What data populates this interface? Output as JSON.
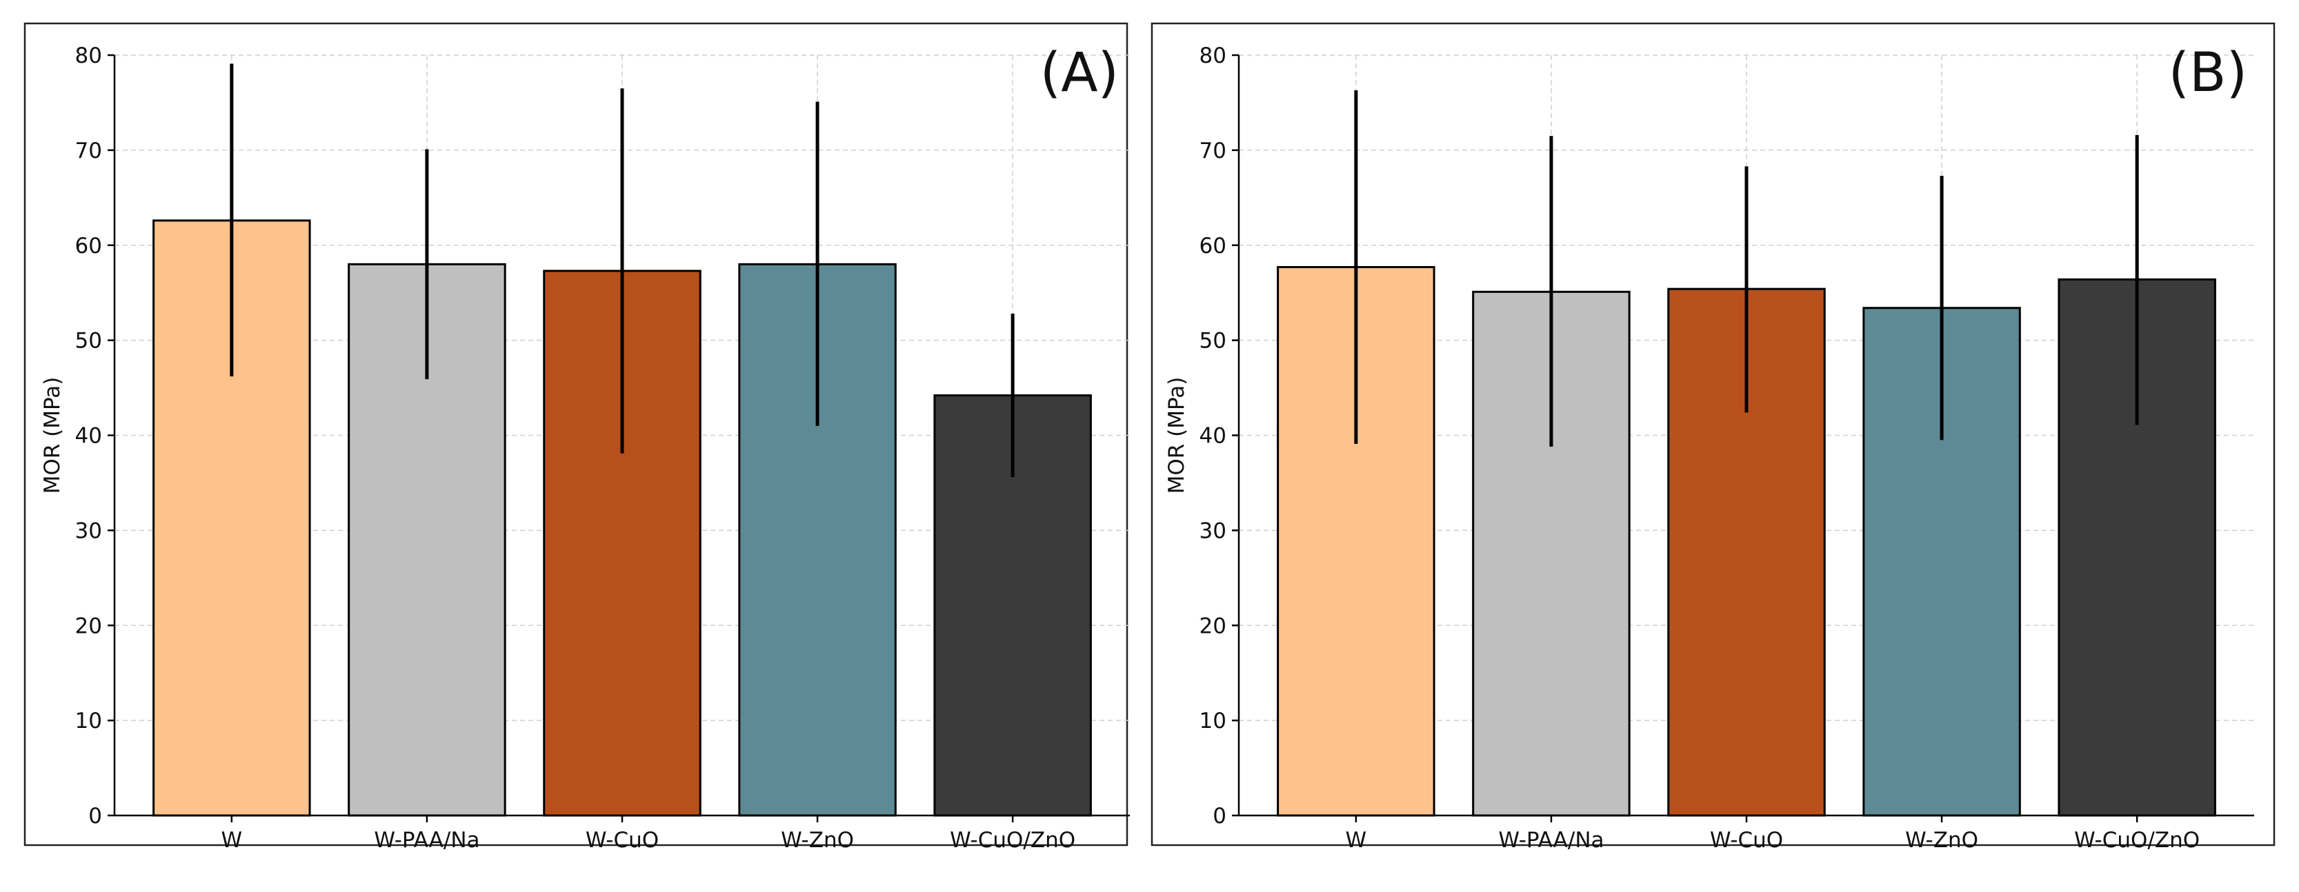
{
  "colors": {
    "W": "#fec28c",
    "W-PAA/Na": "#bfbfbf",
    "W-CuO": "#b8501c",
    "W-ZnO": "#5e8a96",
    "W-CuO/ZnO": "#3b3b3b"
  },
  "chart_data": [
    {
      "type": "bar",
      "panel_label": "(A)",
      "ylabel": "MOR (MPa)",
      "ylim": [
        0,
        80
      ],
      "yticks": [
        0,
        10,
        20,
        30,
        40,
        50,
        60,
        70,
        80
      ],
      "grid": true,
      "categories": [
        "W",
        "W-PAA/Na",
        "W-CuO",
        "W-ZnO",
        "W-CuO/ZnO"
      ],
      "values": [
        62.6,
        58.0,
        57.3,
        58.0,
        44.2
      ],
      "error_low": [
        46.2,
        45.9,
        38.1,
        41.0,
        35.6
      ],
      "error_high": [
        79.1,
        70.1,
        76.5,
        75.1,
        52.8
      ]
    },
    {
      "type": "bar",
      "panel_label": "(B)",
      "ylabel": "MOR (MPa)",
      "ylim": [
        0,
        80
      ],
      "yticks": [
        0,
        10,
        20,
        30,
        40,
        50,
        60,
        70,
        80
      ],
      "grid": true,
      "categories": [
        "W",
        "W-PAA/Na",
        "W-CuO",
        "W-ZnO",
        "W-CuO/ZnO"
      ],
      "values": [
        57.7,
        55.1,
        55.4,
        53.4,
        56.4
      ],
      "error_low": [
        39.1,
        38.8,
        42.4,
        39.5,
        41.1
      ],
      "error_high": [
        76.3,
        71.5,
        68.3,
        67.3,
        71.6
      ]
    }
  ]
}
